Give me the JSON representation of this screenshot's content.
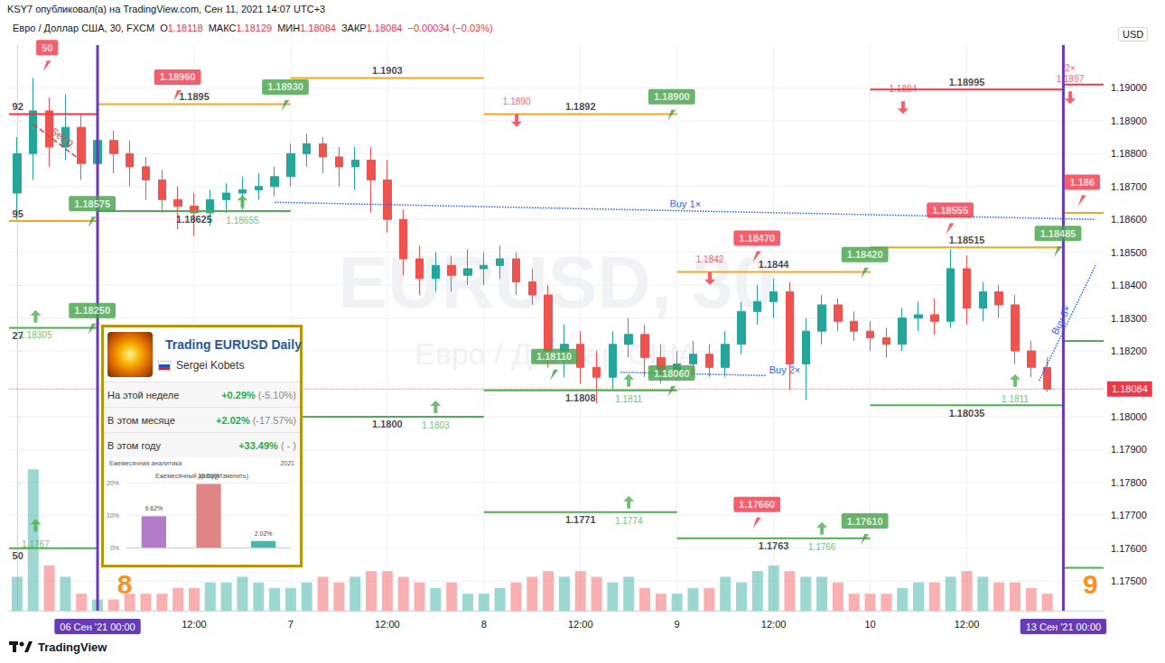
{
  "chart_data": {
    "type": "candlestick",
    "title": "KSY7 опубликовал(а) на TradingView.com, Сен 11, 2021 14:07 UTC+3",
    "subtitle": "Евро / Доллар США, 30, FXCM",
    "quote": [
      {
        "label": "О",
        "value": "1.18118"
      },
      {
        "label": "МАКС",
        "value": "1.18129"
      },
      {
        "label": "МИН",
        "value": "1.18084"
      },
      {
        "label": "ЗАКР",
        "value": "1.18084"
      }
    ],
    "change": "−0.00034 (−0.03%)",
    "currency": "USD",
    "watermark": [
      "EURUSD, 30",
      "Евро / Доллар США"
    ],
    "footer": "TradingView",
    "grid": true,
    "categories": [
      null,
      null,
      null,
      null,
      null,
      "06 Сен '21 00:00",
      null,
      null,
      null,
      null,
      null,
      "12:00",
      null,
      null,
      null,
      null,
      null,
      "7",
      null,
      null,
      null,
      null,
      null,
      "12:00",
      null,
      null,
      null,
      null,
      null,
      "8",
      null,
      null,
      null,
      null,
      null,
      "12:00",
      null,
      null,
      null,
      null,
      null,
      "9",
      null,
      null,
      null,
      null,
      null,
      "12:00",
      null,
      null,
      null,
      null,
      null,
      "10",
      null,
      null,
      null,
      null,
      null,
      "12:00",
      null,
      null,
      null,
      null,
      null,
      "13 Сен '21 00:00",
      null,
      null
    ],
    "series": [
      {
        "type": "candlestick",
        "values": [
          [
            1.1868,
            1.188,
            1.186,
            1.1885
          ],
          [
            1.188,
            1.1893,
            1.1872,
            1.1903
          ],
          [
            1.1893,
            1.1882,
            1.1876,
            1.1897
          ],
          [
            1.1882,
            1.1888,
            1.1878,
            1.1898
          ],
          [
            1.1888,
            1.1877,
            1.1872,
            1.1892
          ],
          [
            1.1877,
            1.1884,
            1.1873,
            1.1888
          ],
          [
            1.1884,
            1.188,
            1.1874,
            1.1887
          ],
          [
            1.188,
            1.1876,
            1.187,
            1.1884
          ],
          [
            1.1876,
            1.1872,
            1.1866,
            1.1879
          ],
          [
            1.1872,
            1.1866,
            1.1862,
            1.1875
          ],
          [
            1.1866,
            1.1864,
            1.1857,
            1.187
          ],
          [
            1.1864,
            1.1862,
            1.1855,
            1.1868
          ],
          [
            1.1862,
            1.1866,
            1.1858,
            1.1869
          ],
          [
            1.1866,
            1.1868,
            1.1862,
            1.1871
          ],
          [
            1.1868,
            1.1869,
            1.1863,
            1.1873
          ],
          [
            1.1869,
            1.187,
            1.1866,
            1.1874
          ],
          [
            1.187,
            1.1873,
            1.1867,
            1.1876
          ],
          [
            1.1873,
            1.188,
            1.187,
            1.1883
          ],
          [
            1.188,
            1.1883,
            1.1876,
            1.1886
          ],
          [
            1.1883,
            1.1879,
            1.1874,
            1.1885
          ],
          [
            1.1879,
            1.1876,
            1.187,
            1.1882
          ],
          [
            1.1876,
            1.1878,
            1.1869,
            1.1882
          ],
          [
            1.1878,
            1.1872,
            1.1862,
            1.1882
          ],
          [
            1.1872,
            1.186,
            1.1856,
            1.1878
          ],
          [
            1.186,
            1.1848,
            1.1843,
            1.1863
          ],
          [
            1.1848,
            1.1842,
            1.1837,
            1.1852
          ],
          [
            1.1842,
            1.1846,
            1.1838,
            1.185
          ],
          [
            1.1846,
            1.1843,
            1.1838,
            1.1849
          ],
          [
            1.1843,
            1.1845,
            1.184,
            1.1851
          ],
          [
            1.1845,
            1.1846,
            1.184,
            1.185
          ],
          [
            1.1846,
            1.1848,
            1.1842,
            1.1852
          ],
          [
            1.1848,
            1.1841,
            1.1837,
            1.185
          ],
          [
            1.1841,
            1.1837,
            1.1834,
            1.1845
          ],
          [
            1.1837,
            1.182,
            1.1815,
            1.184
          ],
          [
            1.182,
            1.1822,
            1.1812,
            1.1828
          ],
          [
            1.1822,
            1.1815,
            1.181,
            1.1826
          ],
          [
            1.1815,
            1.1812,
            1.1804,
            1.182
          ],
          [
            1.1812,
            1.1822,
            1.1808,
            1.1826
          ],
          [
            1.1822,
            1.1825,
            1.1818,
            1.183
          ],
          [
            1.1825,
            1.1818,
            1.1812,
            1.1828
          ],
          [
            1.1818,
            1.1814,
            1.181,
            1.1822
          ],
          [
            1.1814,
            1.1816,
            1.1811,
            1.182
          ],
          [
            1.1816,
            1.1819,
            1.1813,
            1.1823
          ],
          [
            1.1819,
            1.1815,
            1.1812,
            1.1822
          ],
          [
            1.1815,
            1.1822,
            1.1812,
            1.1826
          ],
          [
            1.1822,
            1.1832,
            1.1819,
            1.1835
          ],
          [
            1.1832,
            1.1835,
            1.1828,
            1.184
          ],
          [
            1.1835,
            1.1838,
            1.183,
            1.1842
          ],
          [
            1.1838,
            1.1816,
            1.1808,
            1.1841
          ],
          [
            1.1816,
            1.1826,
            1.1805,
            1.183
          ],
          [
            1.1826,
            1.1834,
            1.1822,
            1.1837
          ],
          [
            1.1834,
            1.1829,
            1.1826,
            1.1836
          ],
          [
            1.1829,
            1.1826,
            1.1823,
            1.1832
          ],
          [
            1.1826,
            1.1824,
            1.182,
            1.1829
          ],
          [
            1.1824,
            1.1822,
            1.1818,
            1.1827
          ],
          [
            1.1822,
            1.183,
            1.182,
            1.1833
          ],
          [
            1.183,
            1.1831,
            1.1826,
            1.1835
          ],
          [
            1.1831,
            1.1829,
            1.1825,
            1.1836
          ],
          [
            1.1829,
            1.1845,
            1.1827,
            1.1851
          ],
          [
            1.1845,
            1.1833,
            1.1828,
            1.1849
          ],
          [
            1.1833,
            1.1838,
            1.1829,
            1.1841
          ],
          [
            1.1838,
            1.1834,
            1.183,
            1.184
          ],
          [
            1.1834,
            1.182,
            1.1816,
            1.1837
          ],
          [
            1.182,
            1.1815,
            1.1812,
            1.1823
          ],
          [
            1.1815,
            1.18084,
            1.18075,
            1.1818
          ],
          null,
          null,
          null
        ]
      },
      {
        "type": "bar",
        "axis": "y2",
        "values": [
          6,
          25,
          8,
          6,
          3,
          2,
          2,
          3,
          3,
          3,
          4,
          4,
          5,
          5,
          6,
          5,
          4,
          4,
          5,
          6,
          5,
          6,
          7,
          7,
          6,
          5,
          4,
          5,
          3,
          3,
          4,
          5,
          6,
          7,
          6,
          7,
          6,
          5,
          6,
          4,
          3,
          3,
          4,
          4,
          6,
          5,
          7,
          8,
          7,
          6,
          6,
          5,
          3,
          3,
          3,
          4,
          5,
          5,
          6,
          7,
          6,
          5,
          5,
          4,
          3,
          null,
          null,
          null
        ]
      }
    ],
    "ylim": [
      1.1741,
      1.1913
    ],
    "yticks": [
      {
        "value": 1.175,
        "label": "1.17500"
      },
      {
        "value": 1.176,
        "label": "1.17600"
      },
      {
        "value": 1.177,
        "label": "1.17700"
      },
      {
        "value": 1.178,
        "label": "1.17800"
      },
      {
        "value": 1.179,
        "label": "1.17900"
      },
      {
        "value": 1.18,
        "label": "1.18000"
      },
      {
        "value": 1.182,
        "label": "1.18200"
      },
      {
        "value": 1.183,
        "label": "1.18300"
      },
      {
        "value": 1.184,
        "label": "1.18400"
      },
      {
        "value": 1.185,
        "label": "1.18500"
      },
      {
        "value": 1.186,
        "label": "1.18600"
      },
      {
        "value": 1.187,
        "label": "1.18700"
      },
      {
        "value": 1.188,
        "label": "1.18800"
      },
      {
        "value": 1.189,
        "label": "1.18900"
      },
      {
        "value": 1.19,
        "label": "1.19000"
      }
    ],
    "y2lim": [
      0,
      100
    ],
    "current_price": {
      "value": 1.18084,
      "label": "1.18084",
      "color": "#f23645"
    },
    "week_marks": [
      {
        "label": "8",
        "at": "06 Сен '21 00:00",
        "color": "#f7931e"
      },
      {
        "label": "9",
        "at": "13 Сен '21 00:00",
        "color": "#f7931e"
      }
    ],
    "levels": [
      {
        "from": null,
        "to": "06 Сен '21 00:00",
        "value": 1.1892,
        "label": "92",
        "color": "#f23645",
        "flags": [
          {
            "value": 1.1905,
            "label": "50",
            "color": "#f23645"
          }
        ]
      },
      {
        "from": null,
        "to": "06 Сен '21 00:00",
        "value": 1.18595,
        "label": "95",
        "color": "#f5a623",
        "flags": [
          {
            "value": 1.18575,
            "label": "1.18575",
            "color": "#43a047"
          }
        ]
      },
      {
        "from": null,
        "to": "06 Сен '21 00:00",
        "value": 1.1827,
        "label": "27",
        "color": "#4caf50",
        "arrows": [
          {
            "value": 1.18305,
            "label": "1.18305",
            "direction": "up"
          }
        ],
        "flags": [
          {
            "value": 1.1825,
            "label": "1.18250",
            "color": "#43a047"
          }
        ]
      },
      {
        "from": null,
        "to": "06 Сен '21 00:00",
        "value": 1.176,
        "label": "50",
        "color": "#4caf50",
        "arrows": [
          {
            "value": 1.1767,
            "label": "1.1767",
            "direction": "up"
          }
        ]
      },
      {
        "from": "06 Сен '21 00:00",
        "to": "7",
        "value": 1.1895,
        "label": "1.1895",
        "color": "#f5a623",
        "flags": [
          {
            "value": 1.1896,
            "label": "1.18960",
            "color": "#f23645"
          },
          {
            "value": 1.1893,
            "label": "1.18930",
            "color": "#43a047"
          }
        ]
      },
      {
        "from": "06 Сен '21 00:00",
        "to": "7",
        "value": 1.18625,
        "label": "1.18625",
        "color": "#4caf50",
        "arrows": [
          {
            "value": 1.18655,
            "label": "1.18655",
            "direction": "up"
          }
        ]
      },
      {
        "from": "7",
        "to": "8",
        "value": 1.1903,
        "label": "1.1903",
        "color": "#f5a623"
      },
      {
        "from": "7",
        "to": "8",
        "value": 1.18,
        "label": "1.1800",
        "color": "#4caf50",
        "arrows": [
          {
            "value": 1.1803,
            "label": "1.1803",
            "direction": "up"
          }
        ]
      },
      {
        "from": "8",
        "to": "9",
        "value": 1.1892,
        "label": "1.1892",
        "color": "#f5a623",
        "arrows": [
          {
            "value": 1.189,
            "label": "1.1890",
            "direction": "down"
          }
        ],
        "flags": [
          {
            "value": 1.189,
            "label": "1.18900",
            "color": "#43a047"
          }
        ]
      },
      {
        "from": "8",
        "to": "9",
        "value": 1.1808,
        "label": "1.1808",
        "color": "#4caf50",
        "arrows": [
          {
            "value": 1.1811,
            "label": "1.1811",
            "direction": "up"
          }
        ],
        "flags": [
          {
            "value": 1.1811,
            "label": "1.18110",
            "color": "#43a047"
          },
          {
            "value": 1.1806,
            "label": "1.18060",
            "color": "#43a047"
          }
        ]
      },
      {
        "from": "8",
        "to": "9",
        "value": 1.1771,
        "label": "1.1771",
        "color": "#4caf50",
        "arrows": [
          {
            "value": 1.1774,
            "label": "1.1774",
            "direction": "up"
          }
        ]
      },
      {
        "from": "9",
        "to": "10",
        "value": 1.1844,
        "label": "1.1844",
        "color": "#f5a623",
        "arrows": [
          {
            "value": 1.1842,
            "label": "1.1842",
            "direction": "down"
          }
        ],
        "flags": [
          {
            "value": 1.1847,
            "label": "1.18470",
            "color": "#f23645"
          },
          {
            "value": 1.1842,
            "label": "1.18420",
            "color": "#43a047"
          }
        ]
      },
      {
        "from": "9",
        "to": "10",
        "value": 1.1763,
        "label": "1.1763",
        "color": "#4caf50",
        "arrows": [
          {
            "value": 1.1766,
            "label": "1.1766",
            "direction": "up"
          }
        ],
        "flags": [
          {
            "value": 1.1766,
            "label": "1.17660",
            "color": "#f23645"
          },
          {
            "value": 1.1761,
            "label": "1.17610",
            "color": "#43a047"
          }
        ]
      },
      {
        "from": "10",
        "to": "13 Сен '21 00:00",
        "value": 1.18995,
        "label": "1.18995",
        "color": "#f23645",
        "arrows": [
          {
            "value": 1.1894,
            "label": "1.1894",
            "direction": "down"
          }
        ]
      },
      {
        "from": "10",
        "to": "13 Сен '21 00:00",
        "value": 1.18515,
        "label": "1.18515",
        "color": "#f5a623",
        "flags": [
          {
            "value": 1.18555,
            "label": "1.18555",
            "color": "#f23645"
          },
          {
            "value": 1.18485,
            "label": "1.18485",
            "color": "#43a047"
          }
        ]
      },
      {
        "from": "10",
        "to": "13 Сен '21 00:00",
        "value": 1.18035,
        "label": "1.18035",
        "color": "#4caf50",
        "arrows": [
          {
            "value": 1.1811,
            "label": "1.1811",
            "direction": "up"
          }
        ]
      },
      {
        "from": "13 Сен '21 00:00",
        "to": null,
        "value": 1.1901,
        "color": "#f23645",
        "arrows": [
          {
            "value": 1.1897,
            "label": "1.1897",
            "direction": "down",
            "note": "2×"
          }
        ]
      },
      {
        "from": "13 Сен '21 00:00",
        "to": null,
        "value": 1.1862,
        "color": "#f5a623",
        "flags": [
          {
            "value": 1.1864,
            "label": "1.186",
            "color": "#f23645"
          }
        ]
      },
      {
        "from": "13 Сен '21 00:00",
        "to": null,
        "value": 1.1823,
        "color": "#4caf50"
      },
      {
        "from": "13 Сен '21 00:00",
        "to": null,
        "value": 1.1754,
        "color": "#4caf50"
      }
    ],
    "signals": [
      {
        "label": "Sell 0.",
        "x": [
          1,
          4.2
        ],
        "values": [
          1.1889,
          1.1877
        ],
        "color": "#f23645",
        "line_style": "dashed"
      },
      {
        "label": "Buy 1×",
        "x": [
          16,
          67
        ],
        "values": [
          1.18652,
          1.186
        ],
        "color": "#2962ff",
        "line_style": "dotted"
      },
      {
        "label": "Buy 2×",
        "x": [
          37.5,
          46.5
        ],
        "values": [
          1.18135,
          1.18125
        ],
        "color": "#2962ff",
        "line_style": "dotted"
      },
      {
        "label": "Buy 3×",
        "x": [
          63.5,
          67
        ],
        "values": [
          1.1811,
          1.1846
        ],
        "color": "#2962ff",
        "line_style": "dotted"
      }
    ],
    "panel": {
      "title": "Trading EURUSD Daily",
      "author": "Sergei Kobets",
      "rows": [
        {
          "label": "На этой неделе",
          "value": "+0.29%",
          "note": "(-5.10%)"
        },
        {
          "label": "В этом месяце",
          "value": "+2.02%",
          "note": "(-17.57%)"
        },
        {
          "label": "В этом году",
          "value": "+33.49%",
          "note": "( - )"
        }
      ],
      "chart": {
        "type": "bar",
        "tab": "Ежемесячная аналитика",
        "year": "2021",
        "title": "Ежемесячный доход(Изменить)",
        "values": [
          9.62,
          19.59,
          2.02
        ],
        "value_labels": [
          "9.62%",
          "19.59%",
          "2.02%"
        ],
        "colors": [
          "#b27cc8",
          "#e08585",
          "#4db6ac"
        ],
        "ylim": [
          0,
          20
        ],
        "yticks": [
          {
            "value": 0,
            "label": "0%"
          },
          {
            "value": 10,
            "label": "10%"
          },
          {
            "value": 20,
            "label": "20%"
          }
        ],
        "data_labels": true,
        "tick_labels": "y"
      }
    }
  }
}
